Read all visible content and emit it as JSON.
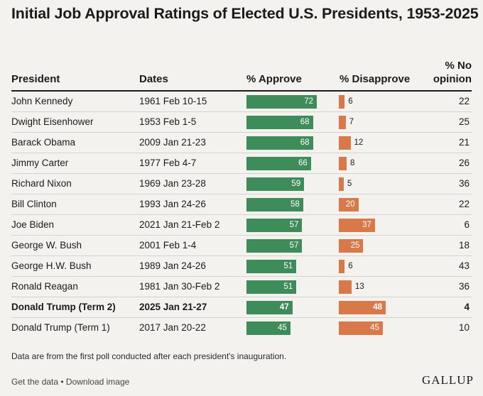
{
  "title": "Initial Job Approval Ratings of Elected U.S. Presidents, 1953-2025",
  "headers": {
    "president": "President",
    "dates": "Dates",
    "approve": "% Approve",
    "disapprove": "% Disapprove",
    "no_opinion": "% No opinion"
  },
  "colors": {
    "approve": "#3d8c5a",
    "disapprove": "#d9794a",
    "background": "#f3f2ee"
  },
  "chart_data": {
    "type": "table",
    "title": "Initial Job Approval Ratings of Elected U.S. Presidents, 1953-2025",
    "columns": [
      "President",
      "Dates",
      "% Approve",
      "% Disapprove",
      "% No opinion"
    ],
    "rows": [
      {
        "president": "John Kennedy",
        "dates": "1961 Feb 10-15",
        "approve": 72,
        "disapprove": 6,
        "no_opinion": 22,
        "bold": false
      },
      {
        "president": "Dwight Eisenhower",
        "dates": "1953 Feb 1-5",
        "approve": 68,
        "disapprove": 7,
        "no_opinion": 25,
        "bold": false
      },
      {
        "president": "Barack Obama",
        "dates": "2009 Jan 21-23",
        "approve": 68,
        "disapprove": 12,
        "no_opinion": 21,
        "bold": false
      },
      {
        "president": "Jimmy Carter",
        "dates": "1977 Feb 4-7",
        "approve": 66,
        "disapprove": 8,
        "no_opinion": 26,
        "bold": false
      },
      {
        "president": "Richard Nixon",
        "dates": "1969 Jan 23-28",
        "approve": 59,
        "disapprove": 5,
        "no_opinion": 36,
        "bold": false
      },
      {
        "president": "Bill Clinton",
        "dates": "1993 Jan 24-26",
        "approve": 58,
        "disapprove": 20,
        "no_opinion": 22,
        "bold": false
      },
      {
        "president": "Joe Biden",
        "dates": "2021 Jan 21-Feb 2",
        "approve": 57,
        "disapprove": 37,
        "no_opinion": 6,
        "bold": false
      },
      {
        "president": "George W. Bush",
        "dates": "2001 Feb 1-4",
        "approve": 57,
        "disapprove": 25,
        "no_opinion": 18,
        "bold": false
      },
      {
        "president": "George H.W. Bush",
        "dates": "1989 Jan 24-26",
        "approve": 51,
        "disapprove": 6,
        "no_opinion": 43,
        "bold": false
      },
      {
        "president": "Ronald Reagan",
        "dates": "1981 Jan 30-Feb 2",
        "approve": 51,
        "disapprove": 13,
        "no_opinion": 36,
        "bold": false
      },
      {
        "president": "Donald Trump (Term 2)",
        "dates": "2025 Jan 21-27",
        "approve": 47,
        "disapprove": 48,
        "no_opinion": 4,
        "bold": true
      },
      {
        "president": "Donald Trump (Term 1)",
        "dates": "2017 Jan 20-22",
        "approve": 45,
        "disapprove": 45,
        "no_opinion": 10,
        "bold": false
      }
    ]
  },
  "footnote": "Data are from the first poll conducted after each president's inauguration.",
  "links": {
    "get_data": "Get the data",
    "separator": " • ",
    "download": "Download image"
  },
  "logo_text": "GALLUP"
}
